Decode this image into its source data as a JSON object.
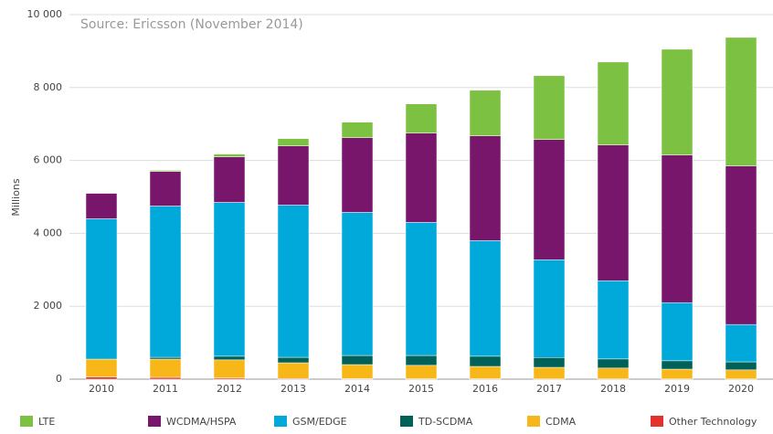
{
  "chart_data": {
    "type": "bar",
    "stacked": true,
    "annotation": "Source: Ericsson (November 2014)",
    "y_label": "Millions",
    "categories": [
      "2010",
      "2011",
      "2012",
      "2013",
      "2014",
      "2015",
      "2016",
      "2017",
      "2018",
      "2019",
      "2020"
    ],
    "series": [
      {
        "name": "Other Technology",
        "color": "#e4312b",
        "values": [
          60,
          50,
          30,
          20,
          15,
          10,
          10,
          5,
          5,
          5,
          5
        ]
      },
      {
        "name": "CDMA",
        "color": "#f7b719",
        "values": [
          490,
          500,
          500,
          430,
          385,
          370,
          340,
          320,
          300,
          270,
          250
        ]
      },
      {
        "name": "TD-SCDMA",
        "color": "#006158",
        "values": [
          0,
          50,
          100,
          150,
          250,
          270,
          280,
          270,
          250,
          230,
          220
        ]
      },
      {
        "name": "GSM/EDGE",
        "color": "#00a9d9",
        "values": [
          3850,
          4150,
          4220,
          4175,
          3925,
          3650,
          3170,
          2680,
          2145,
          1595,
          1025
        ]
      },
      {
        "name": "WCDMA/HSPA",
        "color": "#77166b",
        "values": [
          700,
          950,
          1250,
          1625,
          2050,
          2450,
          2875,
          3300,
          3725,
          4050,
          4350
        ]
      },
      {
        "name": "LTE",
        "color": "#7dc142",
        "values": [
          10,
          30,
          75,
          200,
          425,
          800,
          1250,
          1750,
          2275,
          2900,
          3525
        ]
      }
    ],
    "legend_order": [
      "LTE",
      "WCDMA/HSPA",
      "GSM/EDGE",
      "TD-SCDMA",
      "CDMA",
      "Other Technology"
    ],
    "ylim": [
      0,
      10000
    ],
    "yticks": [
      0,
      {
        "value": 2000,
        "label": "2 000"
      },
      {
        "value": 4000,
        "label": "4 000"
      },
      {
        "value": 6000,
        "label": "6 000"
      },
      {
        "value": 8000,
        "label": "8 000"
      },
      {
        "value": 10000,
        "label": "10 000"
      }
    ],
    "grid": true,
    "legend": "bottom"
  }
}
